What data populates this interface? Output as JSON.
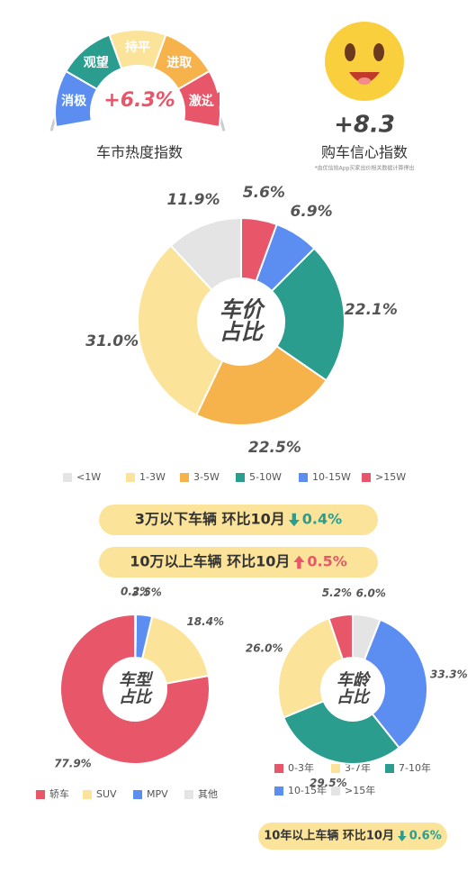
{
  "header": {
    "heat_index": {
      "levels": [
        "消极",
        "观望",
        "持平",
        "进取",
        "激进"
      ],
      "value": "+6.3%",
      "title": "车市热度指数"
    },
    "confidence_index": {
      "value": "+8.3",
      "title": "购车信心指数",
      "note": "*由优信拍App买家出价相关数据计算得出"
    }
  },
  "chart_data": [
    {
      "type": "pie",
      "center_label": [
        "车价",
        "占比"
      ],
      "categories": [
        "<1W",
        "1-3W",
        "3-5W",
        "5-10W",
        "10-15W",
        ">15W"
      ],
      "values": [
        11.9,
        31.0,
        22.5,
        22.1,
        6.9,
        5.6
      ],
      "value_labels": [
        "11.9%",
        "31.0%",
        "22.5%",
        "22.1%",
        "6.9%",
        "5.6%"
      ],
      "colors": [
        "#e4e4e4",
        "#fbe49a",
        "#f6b24b",
        "#2a9d8f",
        "#5b8ef0",
        "#e8566a"
      ]
    },
    {
      "type": "pie",
      "center_label": [
        "车型",
        "占比"
      ],
      "categories": [
        "轿车",
        "SUV",
        "MPV",
        "其他"
      ],
      "values": [
        77.9,
        18.4,
        3.5,
        0.2
      ],
      "value_labels": [
        "77.9%",
        "18.4%",
        "3.5%",
        "0.2%"
      ],
      "colors": [
        "#e8566a",
        "#fbe49a",
        "#5b8ef0",
        "#e4e4e4"
      ]
    },
    {
      "type": "pie",
      "center_label": [
        "车龄",
        "占比"
      ],
      "categories": [
        "0-3年",
        "3-7年",
        "7-10年",
        "10-15年",
        ">15年"
      ],
      "values": [
        5.2,
        26.0,
        29.5,
        33.3,
        6.0
      ],
      "value_labels": [
        "5.2%",
        "26.0%",
        "29.5%",
        "33.3%",
        "6.0%"
      ],
      "colors": [
        "#e8566a",
        "#fbe49a",
        "#2a9d8f",
        "#5b8ef0",
        "#e4e4e4"
      ]
    }
  ],
  "notes": [
    {
      "text": "3万以下车辆 环比10月",
      "direction": "down",
      "change": {
        "value": 0.4,
        "label": "0.4%"
      }
    },
    {
      "text": "10万以上车辆 环比10月",
      "direction": "up",
      "change": {
        "value": 0.5,
        "label": "0.5%"
      }
    },
    {
      "text": "10年以上车辆 环比10月",
      "direction": "down",
      "change": {
        "value": 0.6,
        "label": "0.6%"
      }
    }
  ]
}
